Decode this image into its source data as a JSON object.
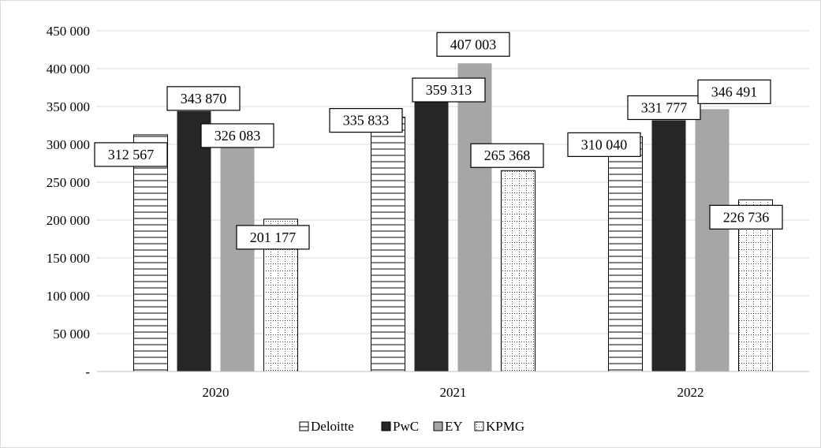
{
  "chart_data": {
    "type": "bar",
    "categories": [
      "2020",
      "2021",
      "2022"
    ],
    "series": [
      {
        "name": "Deloitte",
        "values": [
          312567,
          335833,
          310040
        ],
        "pattern": "horizontal-lines"
      },
      {
        "name": "PwC",
        "values": [
          343870,
          359313,
          331777
        ],
        "pattern": "solid-black"
      },
      {
        "name": "EY",
        "values": [
          326083,
          407003,
          346491
        ],
        "pattern": "solid-gray"
      },
      {
        "name": "KPMG",
        "values": [
          201177,
          265368,
          226736
        ],
        "pattern": "dotted-grid"
      }
    ],
    "data_labels": [
      [
        "312 567",
        "335 833",
        "310 040"
      ],
      [
        "343 870",
        "359 313",
        "331 777"
      ],
      [
        "326 083",
        "407 003",
        "346 491"
      ],
      [
        "201 177",
        "265 368",
        "226 736"
      ]
    ],
    "yticks": [
      {
        "value": 0,
        "label": "-"
      },
      {
        "value": 50000,
        "label": "50 000"
      },
      {
        "value": 100000,
        "label": "100 000"
      },
      {
        "value": 150000,
        "label": "150 000"
      },
      {
        "value": 200000,
        "label": "200 000"
      },
      {
        "value": 250000,
        "label": "250 000"
      },
      {
        "value": 300000,
        "label": "300 000"
      },
      {
        "value": 350000,
        "label": "350 000"
      },
      {
        "value": 400000,
        "label": "400 000"
      },
      {
        "value": 450000,
        "label": "450 000"
      }
    ],
    "ylim": [
      0,
      450000
    ],
    "title": "",
    "xlabel": "",
    "ylabel": "",
    "grid": true,
    "legend": "bottom",
    "colors": {
      "PwC": "#262626",
      "EY": "#a6a6a6",
      "gridline": "#d9d9d9",
      "axis": "#bfbfbf"
    }
  }
}
